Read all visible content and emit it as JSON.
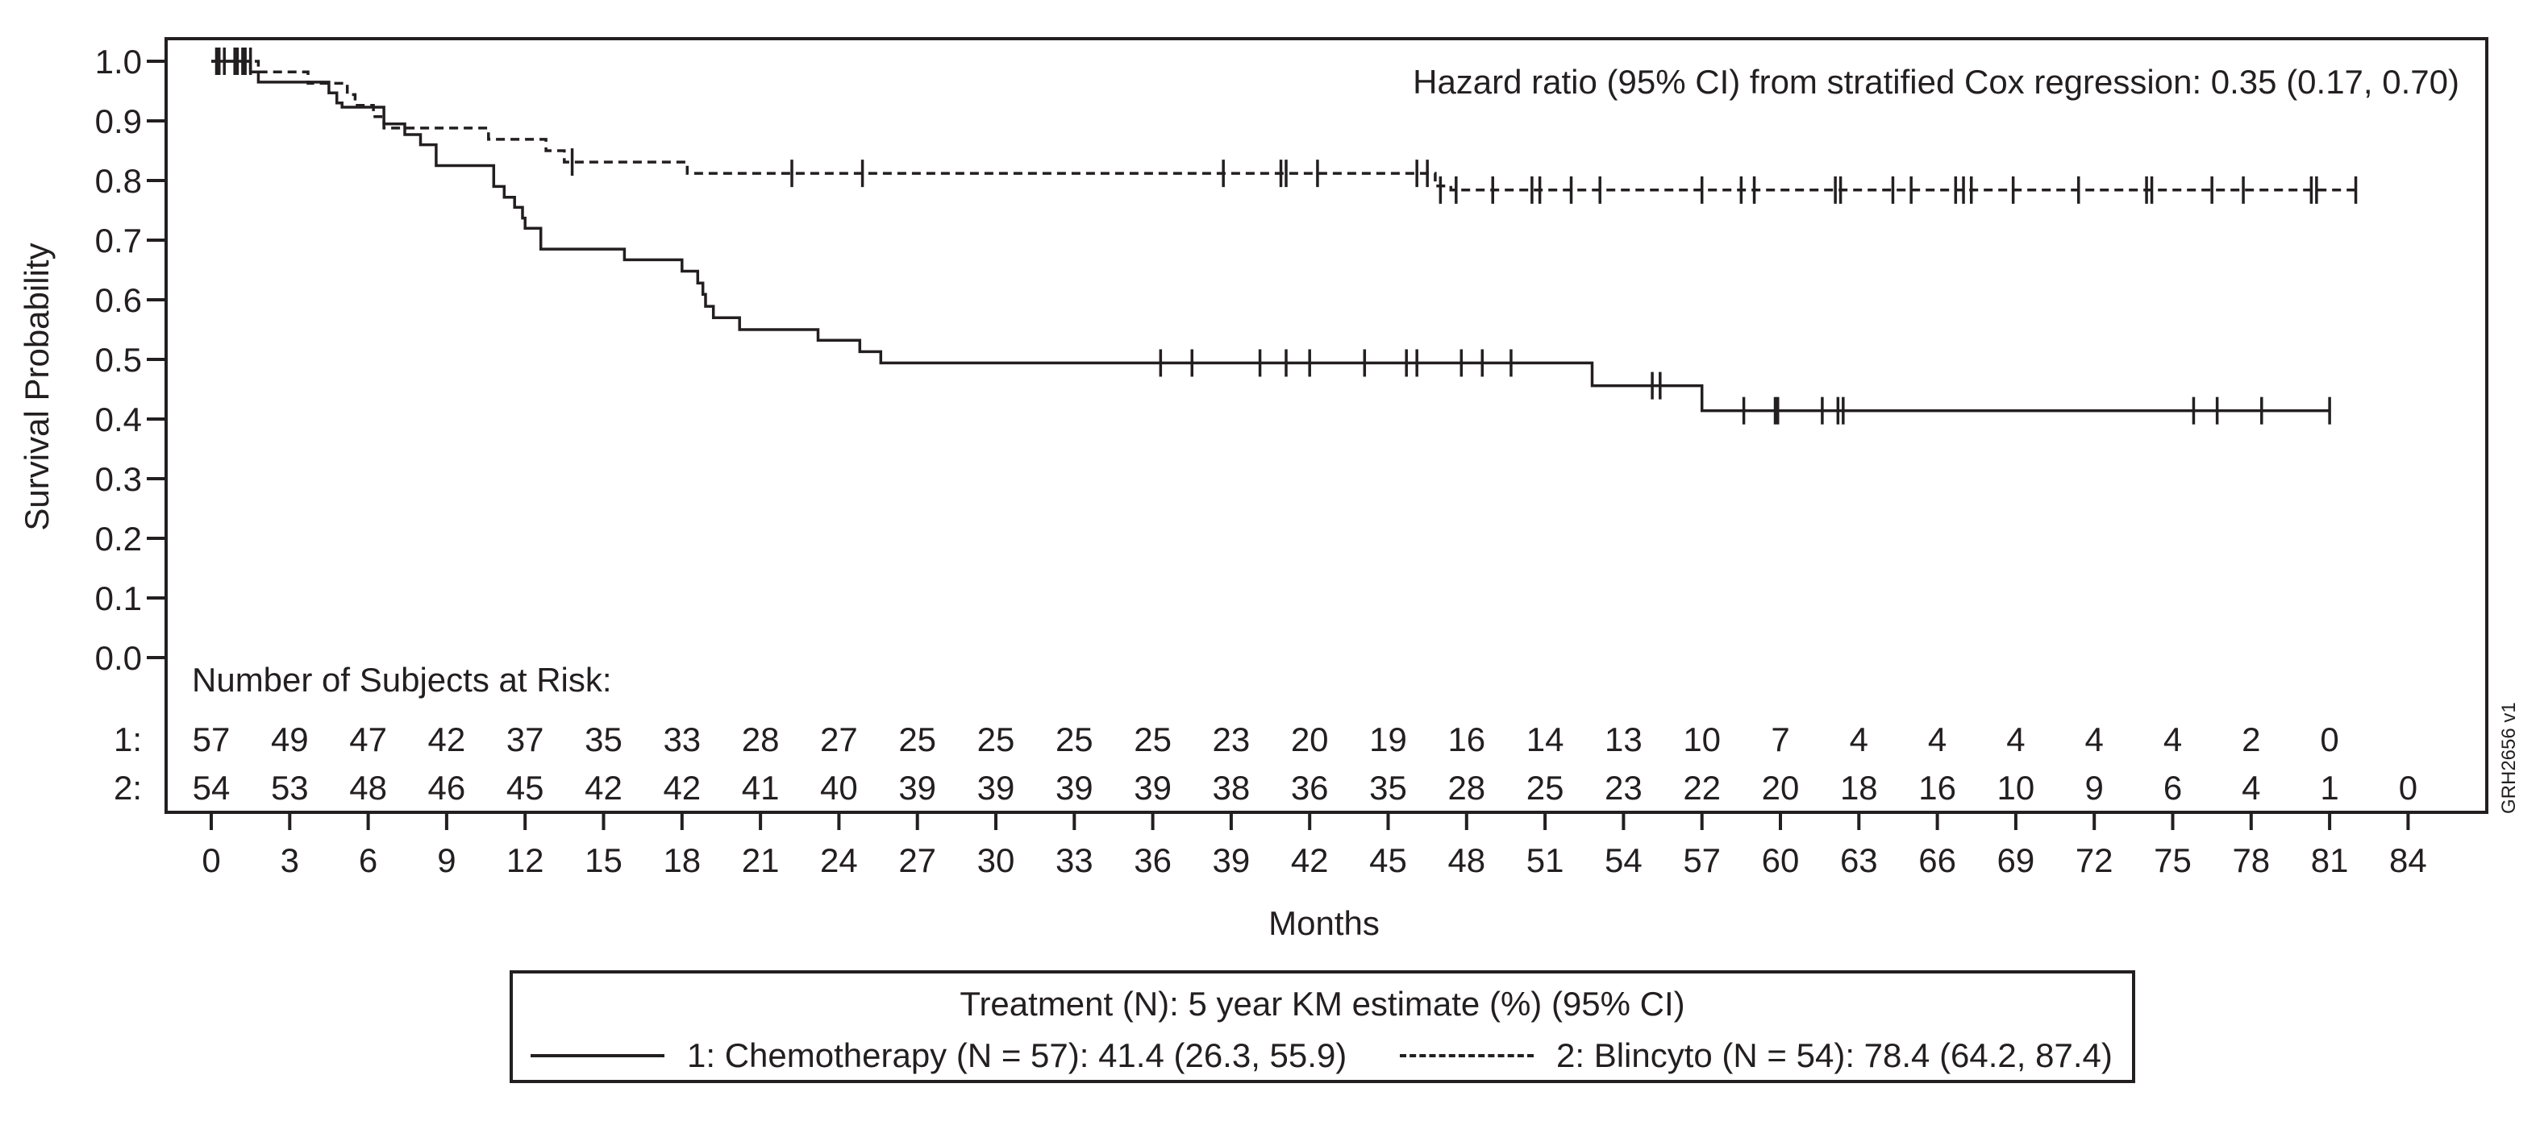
{
  "chart_data": {
    "type": "line",
    "subtype": "kaplan-meier",
    "ylabel": "Survival Probability",
    "xlabel": "Months",
    "ylim": [
      0,
      1
    ],
    "xlim": [
      0,
      84
    ],
    "y_ticks": [
      "0.0",
      "0.1",
      "0.2",
      "0.3",
      "0.4",
      "0.5",
      "0.6",
      "0.7",
      "0.8",
      "0.9",
      "1.0"
    ],
    "x_ticks": [
      "0",
      "3",
      "6",
      "9",
      "12",
      "15",
      "18",
      "21",
      "24",
      "27",
      "30",
      "33",
      "36",
      "39",
      "42",
      "45",
      "48",
      "51",
      "54",
      "57",
      "60",
      "63",
      "66",
      "69",
      "72",
      "75",
      "78",
      "81",
      "84"
    ],
    "annotation": "Hazard ratio (95% CI) from stratified Cox regression: 0.35 (0.17, 0.70)",
    "at_risk": {
      "title": "Number of Subjects at Risk:",
      "rows": [
        {
          "label": "1:",
          "values": [
            "57",
            "49",
            "47",
            "42",
            "37",
            "35",
            "33",
            "28",
            "27",
            "25",
            "25",
            "25",
            "25",
            "23",
            "20",
            "19",
            "16",
            "14",
            "13",
            "10",
            "7",
            "4",
            "4",
            "4",
            "4",
            "4",
            "2",
            "0"
          ]
        },
        {
          "label": "2:",
          "values": [
            "54",
            "53",
            "48",
            "46",
            "45",
            "42",
            "42",
            "41",
            "40",
            "39",
            "39",
            "39",
            "39",
            "38",
            "36",
            "35",
            "28",
            "25",
            "23",
            "22",
            "20",
            "18",
            "16",
            "10",
            "9",
            "6",
            "4",
            "1",
            "0"
          ]
        }
      ]
    },
    "series": [
      {
        "name": "1: Chemotherapy (N = 57): 41.4 (26.3, 55.9)",
        "style": "solid",
        "steps": [
          [
            0,
            1.0
          ],
          [
            1.5,
            0.982
          ],
          [
            1.8,
            0.965
          ],
          [
            4.5,
            0.947
          ],
          [
            4.8,
            0.93
          ],
          [
            5.0,
            0.923
          ],
          [
            6.6,
            0.895
          ],
          [
            7.4,
            0.877
          ],
          [
            8.0,
            0.86
          ],
          [
            8.6,
            0.825
          ],
          [
            10.8,
            0.79
          ],
          [
            11.2,
            0.772
          ],
          [
            11.6,
            0.755
          ],
          [
            11.9,
            0.737
          ],
          [
            12.0,
            0.72
          ],
          [
            12.6,
            0.685
          ],
          [
            15.8,
            0.667
          ],
          [
            18.0,
            0.648
          ],
          [
            18.6,
            0.628
          ],
          [
            18.8,
            0.609
          ],
          [
            18.9,
            0.589
          ],
          [
            19.2,
            0.57
          ],
          [
            20.2,
            0.55
          ],
          [
            23.2,
            0.532
          ],
          [
            24.8,
            0.513
          ],
          [
            25.6,
            0.494
          ],
          [
            52.8,
            0.456
          ],
          [
            57.0,
            0.414
          ],
          [
            81.0,
            0.414
          ]
        ],
        "censored": [
          [
            0.2,
            1.0
          ],
          [
            0.5,
            1.0
          ],
          [
            1.0,
            1.0
          ],
          [
            1.3,
            1.0
          ],
          [
            36.3,
            0.494
          ],
          [
            37.5,
            0.494
          ],
          [
            40.1,
            0.494
          ],
          [
            41.1,
            0.494
          ],
          [
            42.0,
            0.494
          ],
          [
            44.1,
            0.494
          ],
          [
            45.7,
            0.494
          ],
          [
            46.1,
            0.494
          ],
          [
            47.8,
            0.494
          ],
          [
            48.6,
            0.494
          ],
          [
            49.7,
            0.494
          ],
          [
            55.1,
            0.456
          ],
          [
            55.4,
            0.456
          ],
          [
            58.6,
            0.414
          ],
          [
            59.8,
            0.414
          ],
          [
            59.9,
            0.414
          ],
          [
            61.6,
            0.414
          ],
          [
            62.2,
            0.414
          ],
          [
            62.4,
            0.414
          ],
          [
            75.8,
            0.414
          ],
          [
            76.7,
            0.414
          ],
          [
            78.4,
            0.414
          ],
          [
            81.0,
            0.414
          ]
        ]
      },
      {
        "name": "2: Blincyto (N = 54): 78.4 (64.2, 87.4)",
        "style": "dashed",
        "steps": [
          [
            0,
            1.0
          ],
          [
            1.7,
            1.0
          ],
          [
            1.8,
            0.982
          ],
          [
            3.7,
            0.963
          ],
          [
            5.2,
            0.944
          ],
          [
            5.5,
            0.926
          ],
          [
            6.2,
            0.907
          ],
          [
            6.6,
            0.888
          ],
          [
            10.6,
            0.869
          ],
          [
            12.8,
            0.85
          ],
          [
            13.5,
            0.831
          ],
          [
            18.2,
            0.812
          ],
          [
            46.8,
            0.791
          ],
          [
            47.4,
            0.784
          ],
          [
            82.0,
            0.784
          ]
        ],
        "censored": [
          [
            0.3,
            1.0
          ],
          [
            0.9,
            1.0
          ],
          [
            1.2,
            1.0
          ],
          [
            1.5,
            1.0
          ],
          [
            13.8,
            0.831
          ],
          [
            22.2,
            0.812
          ],
          [
            24.9,
            0.812
          ],
          [
            38.7,
            0.812
          ],
          [
            40.9,
            0.812
          ],
          [
            41.1,
            0.812
          ],
          [
            42.3,
            0.812
          ],
          [
            46.1,
            0.812
          ],
          [
            46.5,
            0.812
          ],
          [
            47.0,
            0.784
          ],
          [
            47.6,
            0.784
          ],
          [
            49.0,
            0.784
          ],
          [
            50.5,
            0.784
          ],
          [
            50.8,
            0.784
          ],
          [
            52.0,
            0.784
          ],
          [
            53.1,
            0.784
          ],
          [
            57.0,
            0.784
          ],
          [
            58.5,
            0.784
          ],
          [
            59.0,
            0.784
          ],
          [
            62.1,
            0.784
          ],
          [
            62.3,
            0.784
          ],
          [
            64.3,
            0.784
          ],
          [
            65.0,
            0.784
          ],
          [
            66.7,
            0.784
          ],
          [
            67.0,
            0.784
          ],
          [
            67.3,
            0.784
          ],
          [
            68.9,
            0.784
          ],
          [
            71.4,
            0.784
          ],
          [
            74.0,
            0.784
          ],
          [
            74.2,
            0.784
          ],
          [
            76.5,
            0.784
          ],
          [
            77.7,
            0.784
          ],
          [
            80.3,
            0.784
          ],
          [
            80.5,
            0.784
          ],
          [
            82.0,
            0.784
          ]
        ]
      }
    ],
    "legend": {
      "title": "Treatment (N): 5 year KM estimate (%) (95% CI)",
      "placement": "bottom"
    }
  },
  "watermark": "GRH2656 v1",
  "colors": {
    "ink": "#231f20",
    "background": "#ffffff"
  }
}
